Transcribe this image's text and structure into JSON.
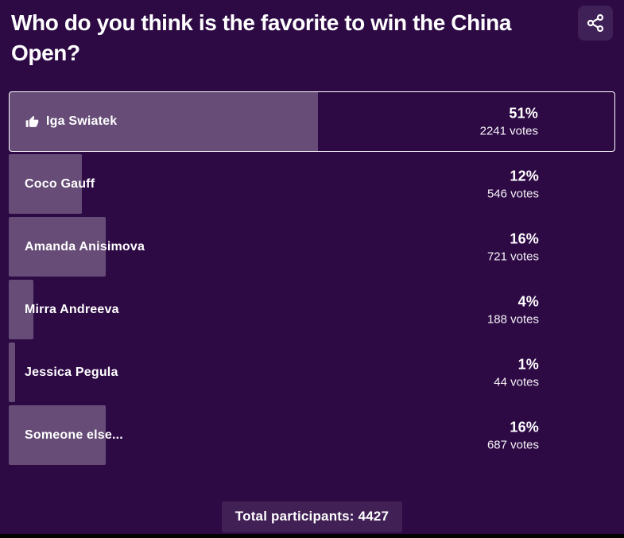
{
  "poll": {
    "question": "Who do you think is the favorite to win the China Open?",
    "options": [
      {
        "label": "Iga Swiatek",
        "percent": "51%",
        "percent_value": 51,
        "votes": "2241 votes",
        "selected": true,
        "icon": "thumbs-up-icon"
      },
      {
        "label": "Coco Gauff",
        "percent": "12%",
        "percent_value": 12,
        "votes": "546 votes",
        "selected": false
      },
      {
        "label": "Amanda Anisimova",
        "percent": "16%",
        "percent_value": 16,
        "votes": "721 votes",
        "selected": false
      },
      {
        "label": "Mirra Andreeva",
        "percent": "4%",
        "percent_value": 4,
        "votes": "188 votes",
        "selected": false
      },
      {
        "label": "Jessica Pegula",
        "percent": "1%",
        "percent_value": 1,
        "votes": "44 votes",
        "selected": false
      },
      {
        "label": "Someone else...",
        "percent": "16%",
        "percent_value": 16,
        "votes": "687 votes",
        "selected": false
      }
    ],
    "total_label": "Total participants: 4427",
    "share_icon": "share-icon"
  },
  "chart_data": {
    "type": "bar",
    "title": "Who do you think is the favorite to win the China Open?",
    "categories": [
      "Iga Swiatek",
      "Coco Gauff",
      "Amanda Anisimova",
      "Mirra Andreeva",
      "Jessica Pegula",
      "Someone else..."
    ],
    "series": [
      {
        "name": "percent",
        "values": [
          51,
          12,
          16,
          4,
          1,
          16
        ]
      },
      {
        "name": "votes",
        "values": [
          2241,
          546,
          721,
          188,
          44,
          687
        ]
      }
    ],
    "total_participants": 4427,
    "xlabel": "",
    "ylabel": "",
    "orientation": "horizontal",
    "xlim": [
      0,
      100
    ]
  },
  "colors": {
    "background": "#2e0a45",
    "bar_fill": "rgba(255,255,255,0.27)",
    "selected_border": "#ffffff",
    "share_button_bg": "#3f2057",
    "total_box_bg": "rgba(255,255,255,0.09)",
    "text": "#ffffff",
    "bottom_strip": "#000000"
  }
}
